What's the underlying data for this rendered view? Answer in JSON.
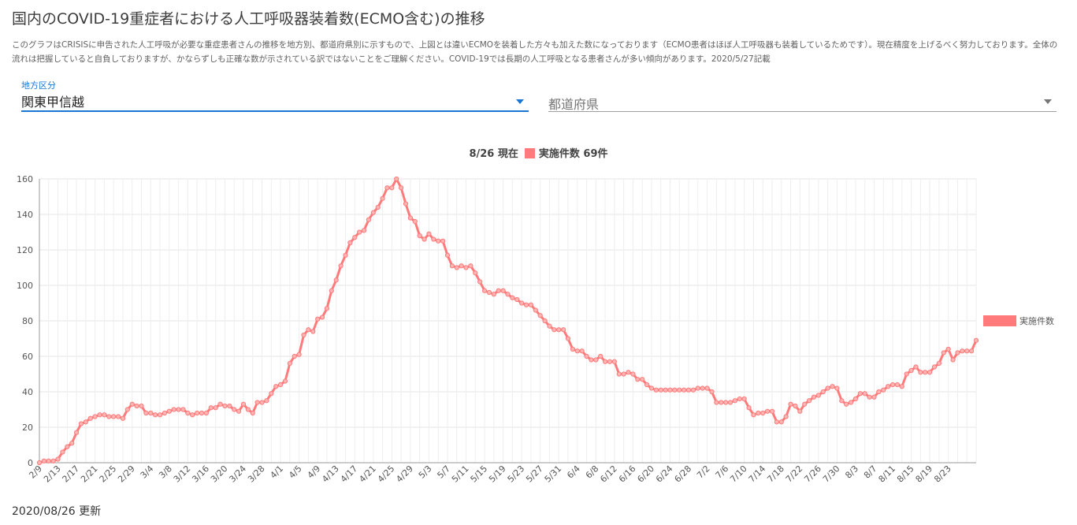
{
  "page": {
    "title": "国内のCOVID-19重症者における人工呼吸器装着数(ECMO含む)の推移",
    "description": "このグラフはCRISISに申告された人工呼吸が必要な重症患者さんの推移を地方別、都道府県別に示すもので、上図とは違いECMOを装着した方々も加えた数になっております（ECMO患者はほぼ人工呼吸器も装着しているためです）。現在精度を上げるべく努力しております。全体の流れは把握していると自負しておりますが、かならずしも正確な数が示されている訳ではないことをご理解ください。COVID-19では長期の人工呼吸となる患者さんが多い傾向があります。2020/5/27記載",
    "updated": "2020/08/26 更新"
  },
  "filters": {
    "region": {
      "label": "地方区分",
      "value": "関東甲信越"
    },
    "prefecture": {
      "placeholder": "都道府県"
    }
  },
  "header": {
    "date_text": "8/26 現在",
    "series_text": "実施件数 69件"
  },
  "colors": {
    "series": "#ff7b7b",
    "grid": "#e6e6e6",
    "accent": "#1976d2"
  },
  "chart_data": {
    "type": "line",
    "ylim": [
      0,
      160
    ],
    "yticks": [
      0,
      20,
      40,
      60,
      80,
      100,
      120,
      140,
      160
    ],
    "xtick_labels": [
      "2/9",
      "2/13",
      "2/17",
      "2/21",
      "2/25",
      "2/29",
      "3/4",
      "3/8",
      "3/12",
      "3/16",
      "3/20",
      "3/24",
      "3/28",
      "4/1",
      "4/5",
      "4/9",
      "4/13",
      "4/17",
      "4/21",
      "4/25",
      "4/29",
      "5/3",
      "5/7",
      "5/11",
      "5/15",
      "5/19",
      "5/23",
      "5/27",
      "5/31",
      "6/4",
      "6/8",
      "6/12",
      "6/16",
      "6/20",
      "6/24",
      "6/28",
      "7/2",
      "7/6",
      "7/10",
      "7/14",
      "7/18",
      "7/22",
      "7/26",
      "7/30",
      "8/3",
      "8/7",
      "8/11",
      "8/15",
      "8/19",
      "8/23"
    ],
    "series": [
      {
        "name": "実施件数",
        "values": [
          0,
          1,
          1,
          1,
          2,
          6,
          9,
          11,
          17,
          22,
          23,
          25,
          26,
          27,
          27,
          26,
          26,
          26,
          25,
          30,
          33,
          32,
          32,
          28,
          28,
          27,
          27,
          28,
          29,
          30,
          30,
          30,
          28,
          27,
          28,
          28,
          28,
          31,
          31,
          33,
          32,
          32,
          30,
          29,
          33,
          30,
          28,
          34,
          34,
          35,
          39,
          43,
          44,
          46,
          56,
          60,
          61,
          72,
          75,
          74,
          81,
          82,
          87,
          97,
          103,
          111,
          117,
          124,
          127,
          130,
          131,
          137,
          141,
          144,
          149,
          155,
          155,
          160,
          155,
          146,
          138,
          136,
          128,
          126,
          129,
          126,
          125,
          125,
          117,
          111,
          110,
          111,
          110,
          111,
          107,
          102,
          97,
          96,
          95,
          97,
          97,
          95,
          93,
          92,
          90,
          89,
          89,
          86,
          83,
          80,
          77,
          75,
          75,
          75,
          70,
          64,
          63,
          63,
          60,
          58,
          58,
          60,
          57,
          57,
          57,
          50,
          50,
          51,
          50,
          47,
          47,
          44,
          42,
          41,
          41,
          41,
          41,
          41,
          41,
          41,
          41,
          41,
          42,
          42,
          42,
          40,
          34,
          34,
          34,
          34,
          35,
          36,
          36,
          31,
          27,
          28,
          28,
          29,
          29,
          23,
          23,
          26,
          33,
          32,
          29,
          33,
          35,
          37,
          38,
          40,
          42,
          43,
          42,
          35,
          33,
          34,
          36,
          39,
          39,
          37,
          37,
          40,
          41,
          43,
          44,
          44,
          43,
          50,
          52,
          54,
          51,
          51,
          51,
          54,
          56,
          62,
          64,
          58,
          62,
          63,
          63,
          63,
          69
        ]
      }
    ]
  }
}
